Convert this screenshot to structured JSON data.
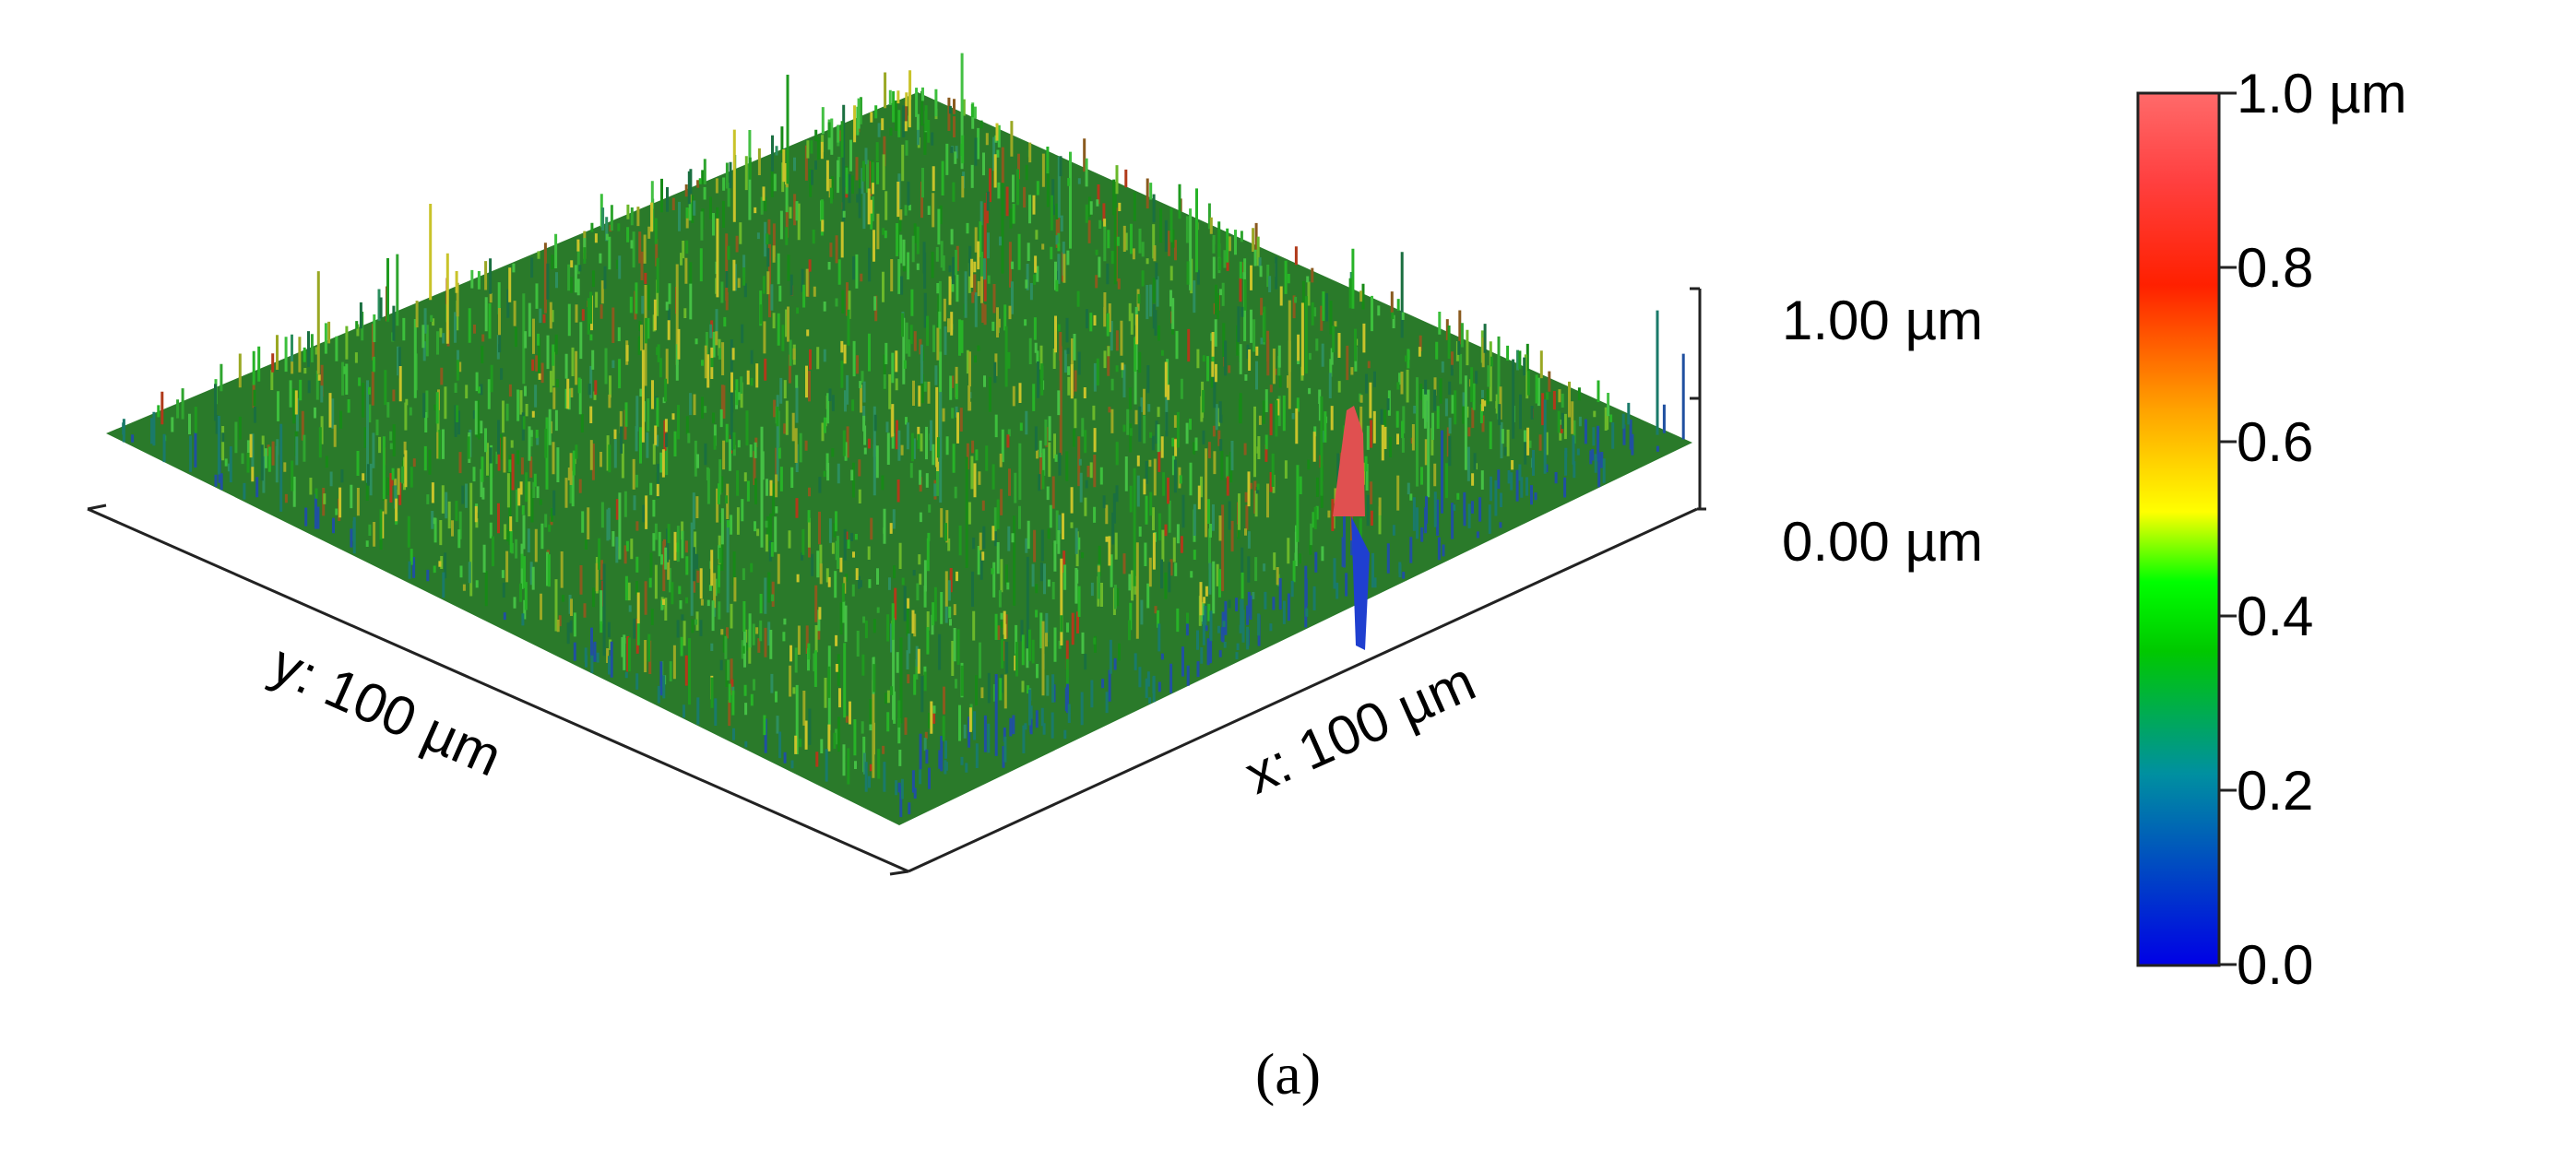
{
  "z_axis": {
    "top_label": "1.00 µm",
    "bottom_label": "0.00 µm"
  },
  "x_axis": {
    "label": "x: 100 µm"
  },
  "y_axis": {
    "label": "y: 100 µm"
  },
  "colorbar": {
    "ticks": [
      "1.0 µm",
      "0.8",
      "0.6",
      "0.4",
      "0.2",
      "0.0"
    ],
    "gradient": [
      "#0000e6",
      "#00b000",
      "#00e000",
      "#ffff00",
      "#ff8c00",
      "#ff2000",
      "#ff6a6a"
    ]
  },
  "caption": "(a)"
}
